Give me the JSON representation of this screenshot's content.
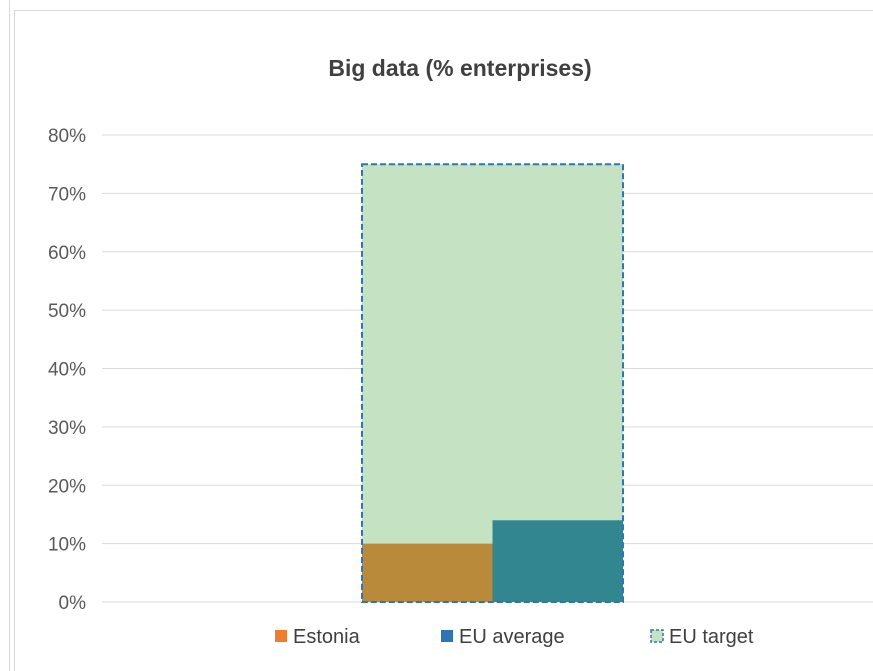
{
  "chart_data": {
    "type": "bar",
    "title": "Big data (% enterprises)",
    "xlabel": "",
    "ylabel": "",
    "ylim": [
      0,
      80
    ],
    "yticks": [
      "0%",
      "10%",
      "20%",
      "30%",
      "40%",
      "50%",
      "60%",
      "70%",
      "80%"
    ],
    "grid": true,
    "legend_position": "bottom",
    "series": [
      {
        "name": "Estonia",
        "values": [
          10
        ],
        "color": "#b88a3a"
      },
      {
        "name": "EU average",
        "values": [
          14
        ],
        "color": "#31868f"
      },
      {
        "name": "EU target",
        "values": [
          75
        ],
        "color": "#c5e3c3",
        "border_color": "#2e75b6",
        "border_style": "dashed"
      }
    ]
  }
}
